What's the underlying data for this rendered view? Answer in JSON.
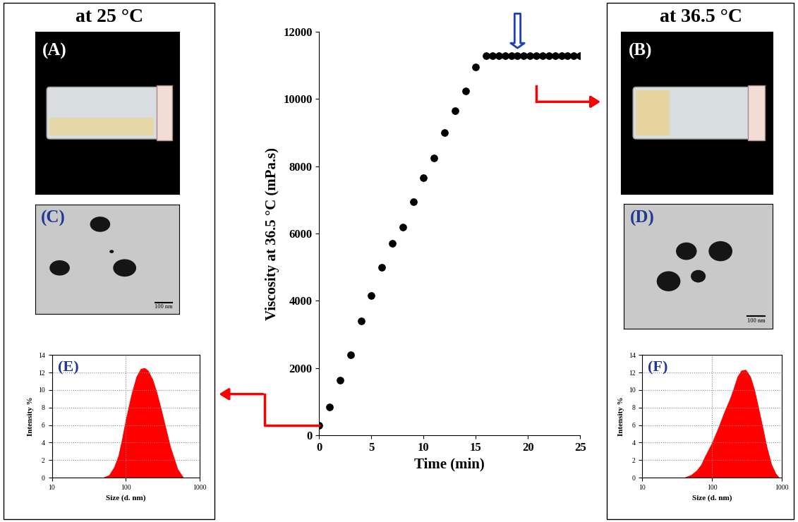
{
  "panels": [
    {
      "title": "at 25 °C",
      "photo_label": "(A)",
      "tem_label": "(C)",
      "scale_bar": "100 nm"
    },
    {
      "title": "at 36.5 °C",
      "photo_label": "(B)",
      "tem_label": "(D)",
      "scale_bar": "100 nm"
    }
  ],
  "chart_data": [
    {
      "type": "scatter",
      "x": [
        0,
        1,
        2,
        3,
        4,
        5,
        6,
        7,
        8,
        9,
        10,
        11,
        12,
        13,
        14,
        15,
        16,
        16.6,
        17.2,
        17.8,
        18.4,
        19,
        19.6,
        20.2,
        20.8,
        21.4,
        22,
        22.6,
        23.2,
        23.8,
        24.4,
        25
      ],
      "values": [
        300,
        850,
        1650,
        2400,
        3400,
        4150,
        5000,
        5700,
        6200,
        6950,
        7650,
        8250,
        9000,
        9650,
        10250,
        10950,
        11300,
        11300,
        11300,
        11300,
        11300,
        11300,
        11300,
        11300,
        11300,
        11300,
        11300,
        11300,
        11300,
        11300,
        11300,
        11300
      ],
      "color": "#000000",
      "marker": "circle",
      "xlabel": "Time (min)",
      "ylabel": "Viscosity at 36.5 °C (mPa.s)",
      "xlim": [
        0,
        25
      ],
      "xticks": [
        0,
        5,
        10,
        15,
        20,
        25
      ],
      "ylim": [
        0,
        12000
      ],
      "yticks": [
        0,
        2000,
        4000,
        6000,
        8000,
        10000,
        12000
      ],
      "grid": false
    },
    {
      "type": "area",
      "annotations": [
        "(E)"
      ],
      "x": [
        50,
        60,
        70,
        80,
        90,
        100,
        120,
        140,
        160,
        180,
        200,
        230,
        260,
        300,
        350,
        400,
        500,
        600
      ],
      "values": [
        0,
        0.3,
        1.2,
        2.5,
        4.5,
        6.5,
        9.5,
        11.5,
        12.4,
        12.5,
        12.2,
        11.2,
        9.8,
        7.8,
        5.5,
        3.5,
        1,
        0
      ],
      "color": "#ff0000",
      "xlabel": "Size (d. nm)",
      "ylabel": "Intensity %",
      "log": "x",
      "xlim": [
        10,
        1000
      ],
      "xticks": [
        10,
        100,
        1000
      ],
      "ylim": [
        0,
        14
      ],
      "yticks": [
        0,
        2,
        4,
        6,
        8,
        10,
        12,
        14
      ],
      "grid": true
    },
    {
      "type": "area",
      "annotations": [
        "(F)"
      ],
      "x": [
        40,
        50,
        60,
        70,
        80,
        100,
        120,
        150,
        180,
        200,
        230,
        260,
        300,
        350,
        400,
        500,
        600,
        700,
        800,
        900
      ],
      "values": [
        0,
        0.3,
        0.8,
        1.5,
        2.5,
        4,
        5.5,
        7.5,
        9,
        10,
        11.5,
        12.2,
        12.3,
        11.5,
        10,
        6.5,
        3.5,
        1.5,
        0.5,
        0
      ],
      "color": "#ff0000",
      "xlabel": "Size (d. nm)",
      "ylabel": "Intensity %",
      "log": "x",
      "xlim": [
        10,
        1000
      ],
      "xticks": [
        10,
        100,
        1000
      ],
      "ylim": [
        0,
        14
      ],
      "yticks": [
        0,
        2,
        4,
        6,
        8,
        10,
        12,
        14
      ],
      "grid": true
    }
  ]
}
